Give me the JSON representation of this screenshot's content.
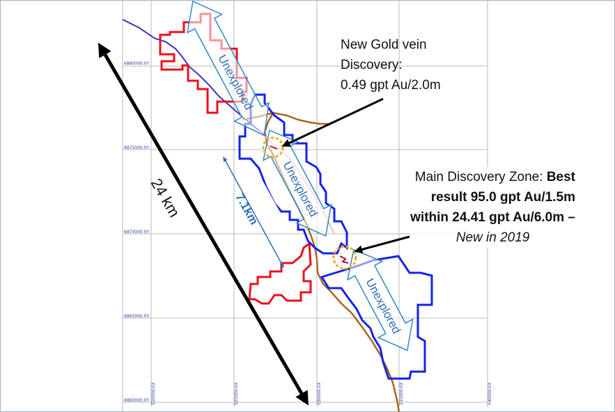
{
  "map": {
    "northing_labels": [
      "6880000.0Y",
      "6875000.0Y",
      "6870000.0Y",
      "6865000.0Y",
      "6860000.0Y"
    ],
    "easting_labels": [
      "520000.0X",
      "525000.0X",
      "530000.0X",
      "535000.0X",
      "540000.0X"
    ],
    "unexplored_labels": [
      "Unexplored",
      "Unexplored",
      "Unexplored"
    ],
    "distance_24km": "24 km",
    "distance_7km": "7.1km",
    "colors": {
      "claim_red": "#e8101e",
      "claim_blue": "#1422e6",
      "river": "#3a32c8",
      "trail": "#a8661e",
      "arrow_outline": "#2f86c7",
      "target_ring": "#f2a81d"
    }
  },
  "callouts": {
    "gold_vein": {
      "line1": "New Gold vein",
      "line2": "Discovery:",
      "line3": "0.49 gpt Au/2.0m"
    },
    "main_zone": {
      "line1_normal": "Main Discovery Zone: ",
      "line1_bold": "Best",
      "line2": "result 95.0 gpt Au/1.5m",
      "line3": "within 24.41 gpt Au/6.0m –",
      "line4": "New in 2019"
    }
  }
}
